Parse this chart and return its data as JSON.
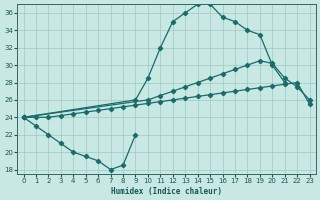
{
  "xlabel": "Humidex (Indice chaleur)",
  "background_color": "#c8e8e4",
  "grid_color": "#a0c8c4",
  "line_color": "#1a6b6b",
  "xlim": [
    -0.5,
    23.5
  ],
  "ylim": [
    17.5,
    37.0
  ],
  "yticks": [
    18,
    20,
    22,
    24,
    26,
    28,
    30,
    32,
    34,
    36
  ],
  "xticks": [
    0,
    1,
    2,
    3,
    4,
    5,
    6,
    7,
    8,
    9,
    10,
    11,
    12,
    13,
    14,
    15,
    16,
    17,
    18,
    19,
    20,
    21,
    22,
    23
  ],
  "series": {
    "dip_x": [
      0,
      1,
      2,
      3,
      4,
      5,
      6,
      7,
      8,
      9
    ],
    "dip_y": [
      24,
      23,
      22,
      21,
      20,
      19.5,
      19,
      18,
      18.5,
      22
    ],
    "peak_x": [
      0,
      9,
      10,
      11,
      12,
      13,
      14,
      15,
      16,
      17,
      18,
      19,
      20,
      21
    ],
    "peak_y": [
      24,
      26,
      28.5,
      32,
      35,
      36,
      37,
      37,
      35.5,
      35,
      34,
      33.5,
      30,
      28
    ],
    "flat_x": [
      0,
      1,
      2,
      3,
      4,
      5,
      6,
      7,
      8,
      9,
      10,
      11,
      12,
      13,
      14,
      15,
      16,
      17,
      18,
      19,
      20,
      21,
      22,
      23
    ],
    "flat_y": [
      24,
      24,
      24,
      24.2,
      24.4,
      24.6,
      24.8,
      25.0,
      25.2,
      25.4,
      25.6,
      25.8,
      26.0,
      26.2,
      26.4,
      26.6,
      26.8,
      27.0,
      27.2,
      27.4,
      27.6,
      27.8,
      28.0,
      25.5
    ],
    "mid_x": [
      0,
      10,
      11,
      12,
      13,
      14,
      15,
      16,
      17,
      18,
      19,
      20,
      21,
      22,
      23
    ],
    "mid_y": [
      24,
      26,
      26.5,
      27,
      27.5,
      28,
      28.5,
      29,
      29.5,
      30,
      30.5,
      30.2,
      28.5,
      27.5,
      26
    ]
  }
}
